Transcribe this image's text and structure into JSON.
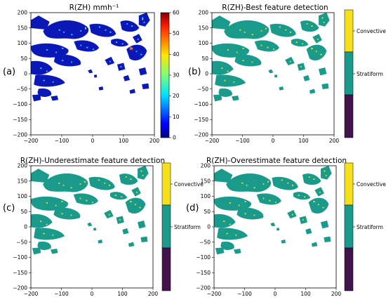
{
  "chart_data": [
    {
      "type": "heatmap",
      "panel_label": "(a)",
      "title": "R(ZH) mmh⁻¹",
      "x_ticks": [
        -200,
        -100,
        0,
        100,
        200
      ],
      "y_ticks": [
        -200,
        -150,
        -100,
        -50,
        0,
        50,
        100,
        150,
        200
      ],
      "xlim": [
        -200,
        200
      ],
      "ylim": [
        -200,
        200
      ],
      "grid": false,
      "colorbar": {
        "ticks": [
          0,
          10,
          20,
          30,
          40,
          50,
          60
        ],
        "range": [
          0,
          60
        ],
        "colors": [
          "#0000a0",
          "#0033ff",
          "#00b0ff",
          "#2de0c0",
          "#9cff60",
          "#ffea00",
          "#ff8a00",
          "#ff2000",
          "#a00000"
        ]
      }
    },
    {
      "type": "heatmap",
      "panel_label": "(b)",
      "title": "R(ZH)-Best feature detection",
      "x_ticks": [
        -200,
        -100,
        0,
        100,
        200
      ],
      "y_ticks": [
        -200,
        -150,
        -100,
        -50,
        0,
        50,
        100,
        150,
        200
      ],
      "xlim": [
        -200,
        200
      ],
      "ylim": [
        -200,
        200
      ],
      "grid": false,
      "colorbar": {
        "labels": [
          "Convective",
          "Stratiform"
        ],
        "colors": {
          "convective": "#f5e01d",
          "stratiform": "#1a9a8b",
          "other": "#43134e"
        }
      }
    },
    {
      "type": "heatmap",
      "panel_label": "(c)",
      "title": "R(ZH)-Underestimate feature detection",
      "x_ticks": [
        -200,
        -100,
        0,
        100,
        200
      ],
      "y_ticks": [
        -200,
        -150,
        -100,
        -50,
        0,
        50,
        100,
        150,
        200
      ],
      "xlim": [
        -200,
        200
      ],
      "ylim": [
        -200,
        200
      ],
      "grid": false,
      "colorbar": {
        "labels": [
          "Convective",
          "Stratiform"
        ],
        "colors": {
          "convective": "#f5e01d",
          "stratiform": "#1a9a8b",
          "other": "#43134e"
        }
      }
    },
    {
      "type": "heatmap",
      "panel_label": "(d)",
      "title": "R(ZH)-Overestimate feature detection",
      "x_ticks": [
        -200,
        -100,
        0,
        100,
        200
      ],
      "y_ticks": [
        -200,
        -150,
        -100,
        -50,
        0,
        50,
        100,
        150,
        200
      ],
      "xlim": [
        -200,
        200
      ],
      "ylim": [
        -200,
        200
      ],
      "grid": false,
      "colorbar": {
        "labels": [
          "Convective",
          "Stratiform"
        ],
        "colors": {
          "convective": "#f5e01d",
          "stratiform": "#1a9a8b",
          "other": "#43134e"
        }
      }
    }
  ]
}
